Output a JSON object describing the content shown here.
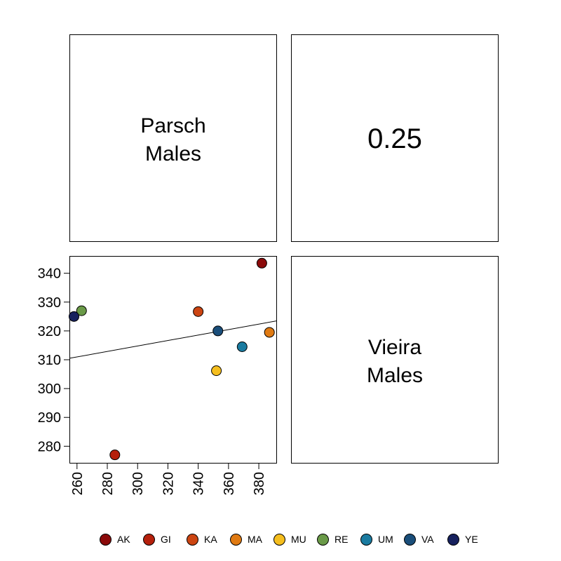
{
  "panels": {
    "top_left": {
      "line1": "Parsch",
      "line2": "Males"
    },
    "top_right": {
      "value": "0.25"
    },
    "bottom_right": {
      "line1": "Vieira",
      "line2": "Males"
    }
  },
  "chart_data": {
    "type": "scatter",
    "title": "",
    "xlabel": "",
    "ylabel": "",
    "xlim": [
      255,
      392
    ],
    "ylim": [
      274,
      346
    ],
    "xticks": [
      260,
      280,
      300,
      320,
      340,
      360,
      380
    ],
    "yticks": [
      280,
      290,
      300,
      310,
      320,
      330,
      340
    ],
    "series": [
      {
        "name": "AK",
        "color": "#8B0A0A",
        "x": 382,
        "y": 343.5
      },
      {
        "name": "GI",
        "color": "#B5200C",
        "x": 285,
        "y": 277
      },
      {
        "name": "KA",
        "color": "#CC4512",
        "x": 340,
        "y": 326.7
      },
      {
        "name": "MA",
        "color": "#E07A12",
        "x": 387,
        "y": 319.5
      },
      {
        "name": "MU",
        "color": "#F5BE1E",
        "x": 352,
        "y": 306.2
      },
      {
        "name": "RE",
        "color": "#6A9A48",
        "x": 263,
        "y": 327
      },
      {
        "name": "UM",
        "color": "#1A7BA0",
        "x": 369,
        "y": 314.5
      },
      {
        "name": "VA",
        "color": "#1A4E7A",
        "x": 353,
        "y": 320
      },
      {
        "name": "YE",
        "color": "#17215E",
        "x": 258,
        "y": 325
      }
    ],
    "fit_line": {
      "x": [
        255,
        392
      ],
      "y": [
        310.5,
        323.5
      ]
    },
    "legend_position": "bottom",
    "grid": false
  }
}
